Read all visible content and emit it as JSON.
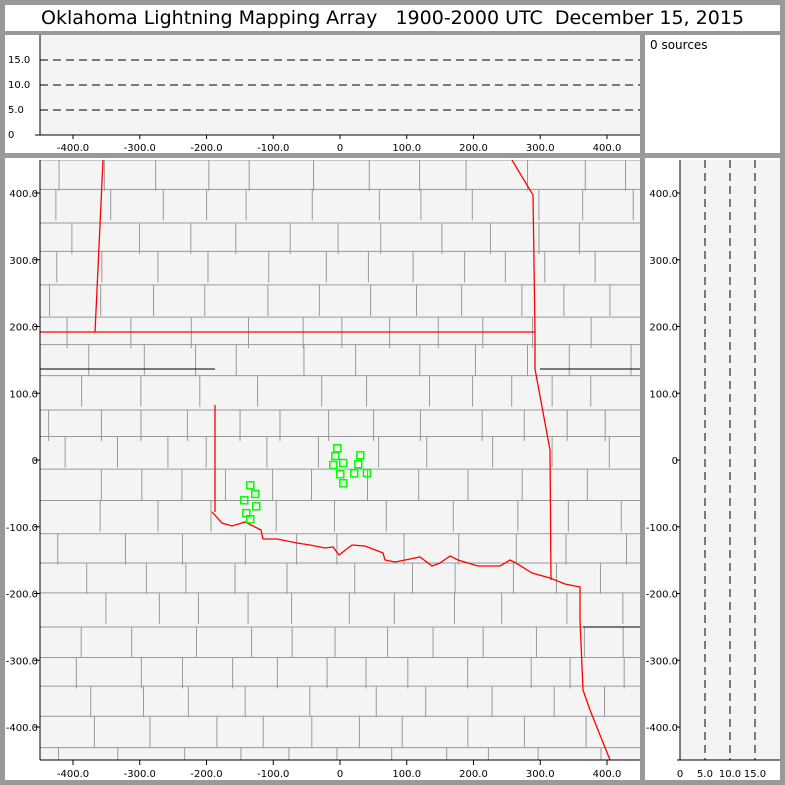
{
  "title": "Oklahoma Lightning Mapping Array   1900-2000 UTC  December 15, 2015",
  "source_count_label": "0 sources",
  "colors": {
    "frame": "#999999",
    "plot_bg": "#f4f4f4",
    "county": "#999999",
    "state_border": "#ff0000",
    "station": "#00ff00"
  },
  "plan_view": {
    "x_ticks": [
      "-400.0",
      "-300.0",
      "-200.0",
      "-100.0",
      "0",
      "100.0",
      "200.0",
      "300.0",
      "400.0"
    ],
    "y_ticks": [
      "400.0",
      "300.0",
      "200.0",
      "100.0",
      "0",
      "-100.0",
      "-200.0",
      "-300.0",
      "-400.0"
    ]
  },
  "alt_lon_view": {
    "y_ticks": [
      "0",
      "5.0",
      "10.0",
      "15.0"
    ],
    "x_ticks": [
      "-400.0",
      "-300.0",
      "-200.0",
      "-100.0",
      "0",
      "100.0",
      "200.0",
      "300.0",
      "400.0"
    ]
  },
  "alt_lat_view": {
    "x_ticks": [
      "0",
      "5.0",
      "10.0",
      "15.0"
    ],
    "y_ticks": [
      "400.0",
      "300.0",
      "200.0",
      "100.0",
      "0",
      "-100.0",
      "-200.0",
      "-300.0",
      "-400.0"
    ]
  },
  "stations": [
    [
      -4.0,
      17.5
    ],
    [
      -7.0,
      6.0
    ],
    [
      30.4,
      7.0
    ],
    [
      -10.0,
      -7.5
    ],
    [
      4.9,
      -4.5
    ],
    [
      27.4,
      -6.4
    ],
    [
      0.4,
      -21.4
    ],
    [
      21.4,
      -19.9
    ],
    [
      40.4,
      -19.5
    ],
    [
      4.9,
      -34.9
    ],
    [
      -134.4,
      -37.9
    ],
    [
      -126.9,
      -50.9
    ],
    [
      -143.4,
      -60.4
    ],
    [
      -125.4,
      -69.4
    ],
    [
      -140.4,
      -79.5
    ],
    [
      -134.4,
      -88.8
    ]
  ]
}
